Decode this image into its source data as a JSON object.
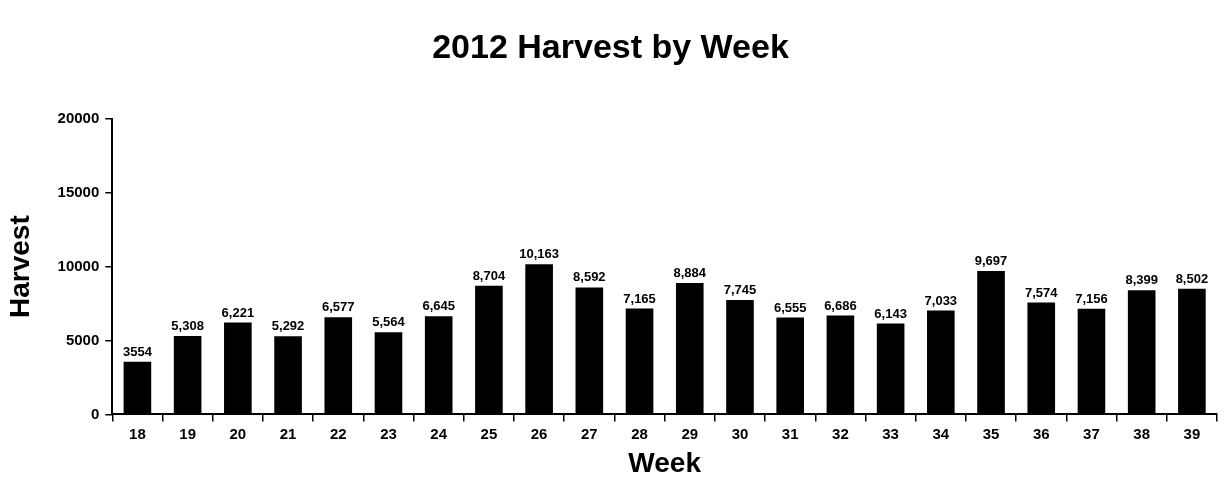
{
  "chart_data": {
    "type": "bar",
    "title": "2012 Harvest by Week",
    "xlabel": "Week",
    "ylabel": "Harvest",
    "categories": [
      "18",
      "19",
      "20",
      "21",
      "22",
      "23",
      "24",
      "25",
      "26",
      "27",
      "28",
      "29",
      "30",
      "31",
      "32",
      "33",
      "34",
      "35",
      "36",
      "37",
      "38",
      "39"
    ],
    "values": [
      3554,
      5308,
      6221,
      5292,
      6577,
      5564,
      6645,
      8704,
      10163,
      8592,
      7165,
      8884,
      7745,
      6555,
      6686,
      6143,
      7033,
      9697,
      7574,
      7156,
      8399,
      8502
    ],
    "value_labels": [
      "3554",
      "5,308",
      "6,221",
      "5,292",
      "6,577",
      "5,564",
      "6,645",
      "8,704",
      "10,163",
      "8,592",
      "7,165",
      "8,884",
      "7,745",
      "6,555",
      "6,686",
      "6,143",
      "7,033",
      "9,697",
      "7,574",
      "7,156",
      "8,399",
      "8,502"
    ],
    "color": "#000000",
    "ylim": [
      0,
      20000
    ],
    "yticks": [
      0,
      5000,
      10000,
      15000,
      20000
    ]
  }
}
